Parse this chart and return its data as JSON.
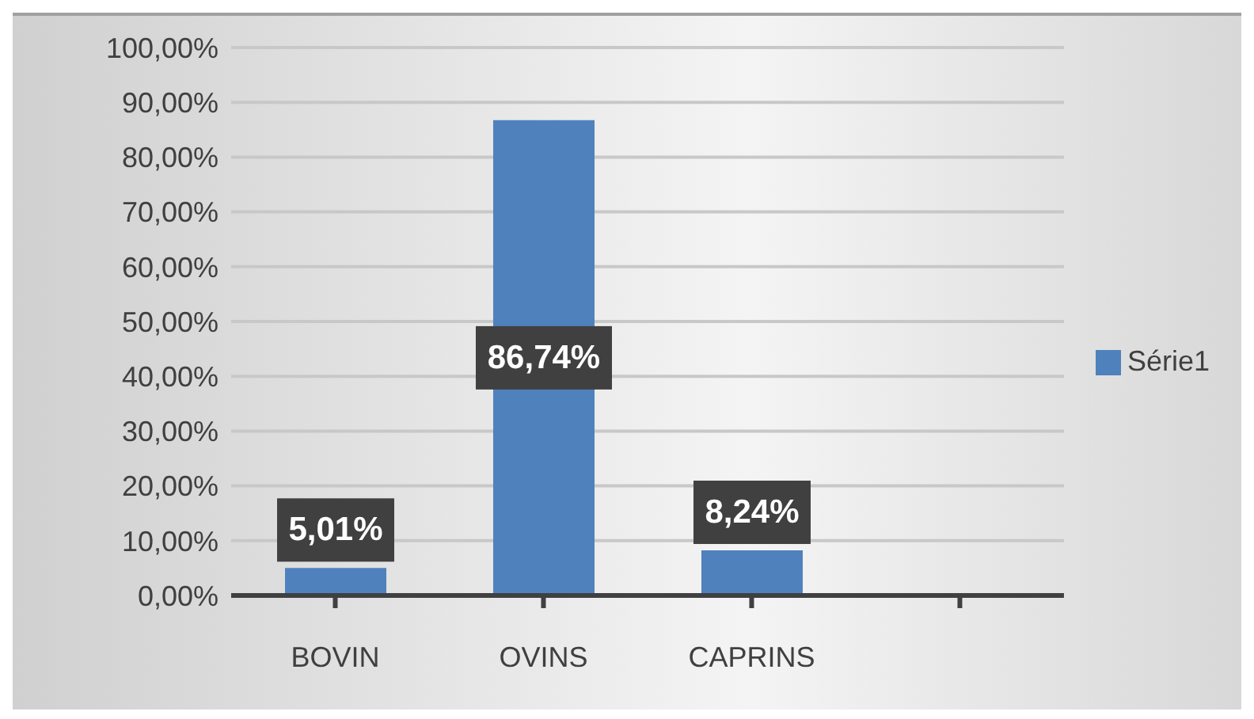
{
  "chart_data": {
    "type": "bar",
    "categories": [
      "BOVIN",
      "OVINS",
      "CAPRINS",
      null
    ],
    "series": [
      {
        "name": "Série1",
        "color": "#4f81bd",
        "values": [
          5.01,
          86.74,
          8.24,
          null
        ],
        "value_labels": [
          "5,01%",
          "86,74%",
          "8,24%",
          null
        ]
      }
    ],
    "ylim": [
      0,
      100
    ],
    "yticks": [
      {
        "value": 0,
        "label": "0,00%"
      },
      {
        "value": 10,
        "label": "10,00%"
      },
      {
        "value": 20,
        "label": "20,00%"
      },
      {
        "value": 30,
        "label": "30,00%"
      },
      {
        "value": 40,
        "label": "40,00%"
      },
      {
        "value": 50,
        "label": "50,00%"
      },
      {
        "value": 60,
        "label": "60,00%"
      },
      {
        "value": 70,
        "label": "70,00%"
      },
      {
        "value": 80,
        "label": "80,00%"
      },
      {
        "value": 90,
        "label": "90,00%"
      },
      {
        "value": 100,
        "label": "100,00%"
      }
    ],
    "grid": "y",
    "legend": "right"
  }
}
